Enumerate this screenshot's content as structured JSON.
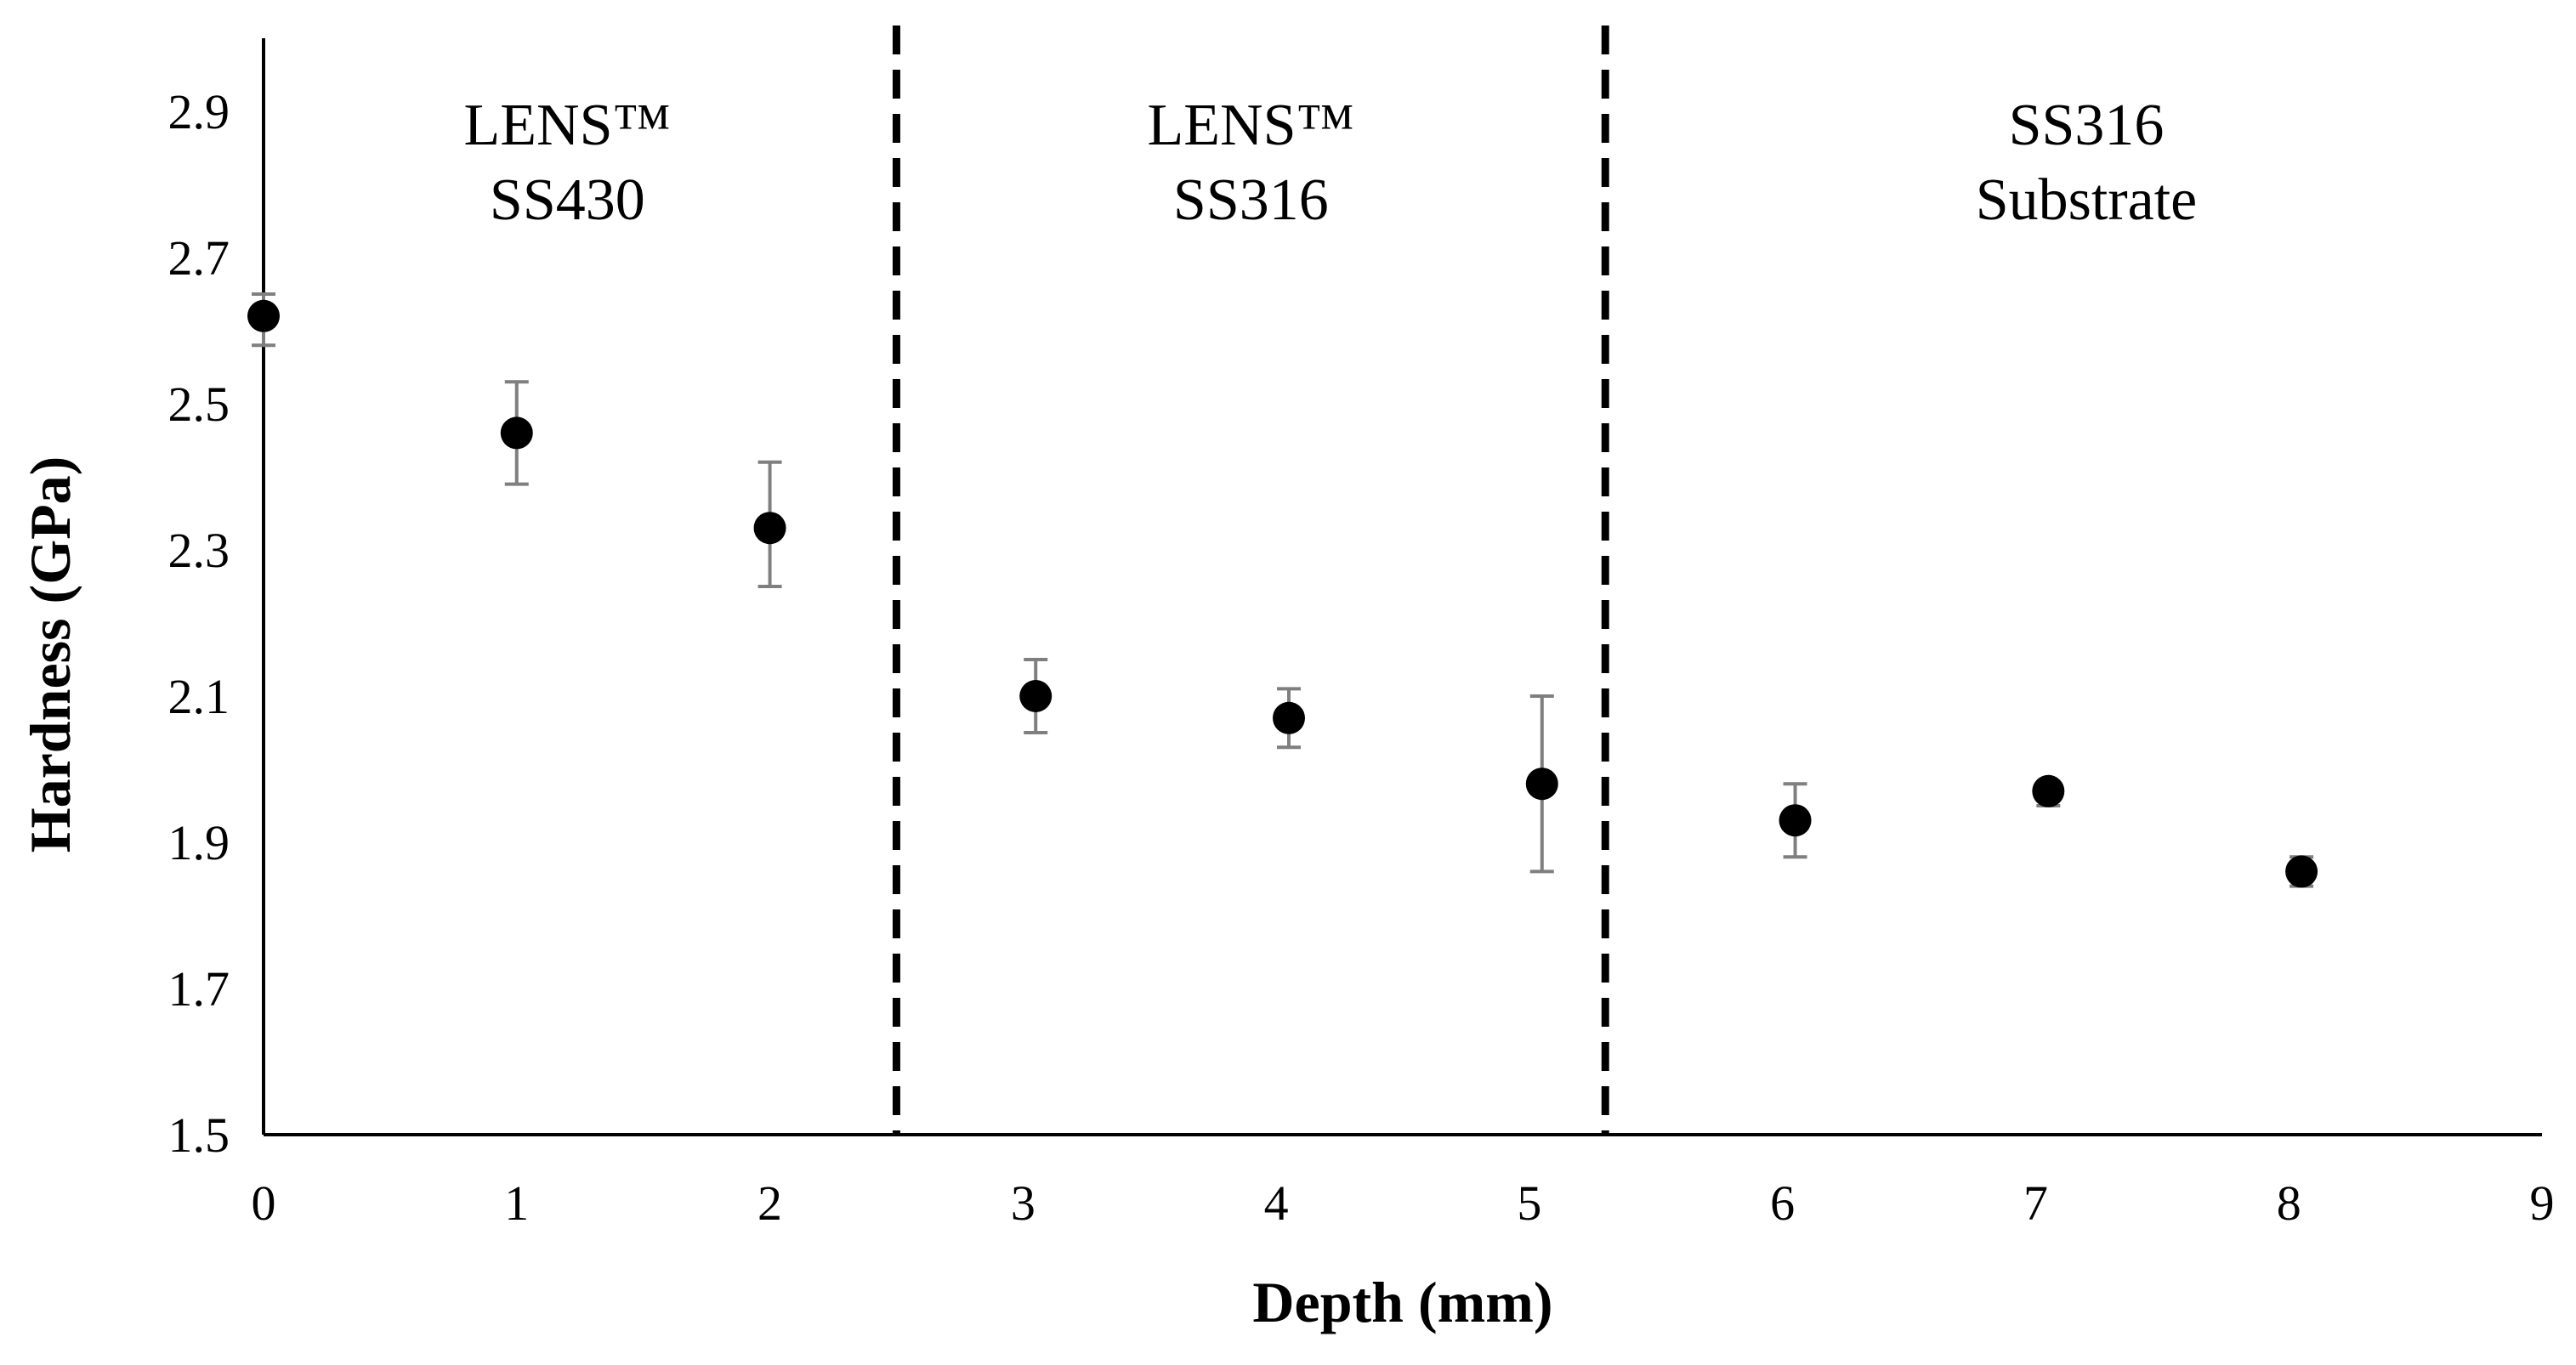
{
  "chart_data": {
    "type": "scatter",
    "xlabel": "Depth (mm)",
    "ylabel": "Hardness (GPa)",
    "xlim": [
      0,
      9
    ],
    "ylim": [
      1.5,
      3.0
    ],
    "x_ticks": [
      "0",
      "1",
      "2",
      "3",
      "4",
      "5",
      "6",
      "7",
      "8",
      "9"
    ],
    "y_ticks": [
      "1.5",
      "1.7",
      "1.9",
      "2.1",
      "2.3",
      "2.5",
      "2.7",
      "2.9"
    ],
    "grid": false,
    "legend": "none",
    "series": [
      {
        "x": [
          0,
          1,
          2,
          3.05,
          4.05,
          5.05,
          6.05,
          7.05,
          8.05
        ],
        "y": [
          2.62,
          2.46,
          2.33,
          2.1,
          2.07,
          1.98,
          1.93,
          1.97,
          1.86
        ],
        "err_low": [
          0.04,
          0.07,
          0.08,
          0.05,
          0.04,
          0.12,
          0.05,
          0.02,
          0.02
        ],
        "err_high": [
          0.03,
          0.07,
          0.09,
          0.05,
          0.04,
          0.12,
          0.05,
          0.01,
          0.02
        ],
        "color": "#000000",
        "error_bar_color": "#7f7f7f"
      }
    ],
    "region_dividers": [
      2.5,
      5.3
    ],
    "regions": [
      {
        "line1": "LENS™",
        "line2": "SS430",
        "x_center": 1.2
      },
      {
        "line1": "LENS™",
        "line2": "SS316",
        "x_center": 3.9
      },
      {
        "line1": "SS316",
        "line2": "Substrate",
        "x_center": 7.2
      }
    ]
  }
}
